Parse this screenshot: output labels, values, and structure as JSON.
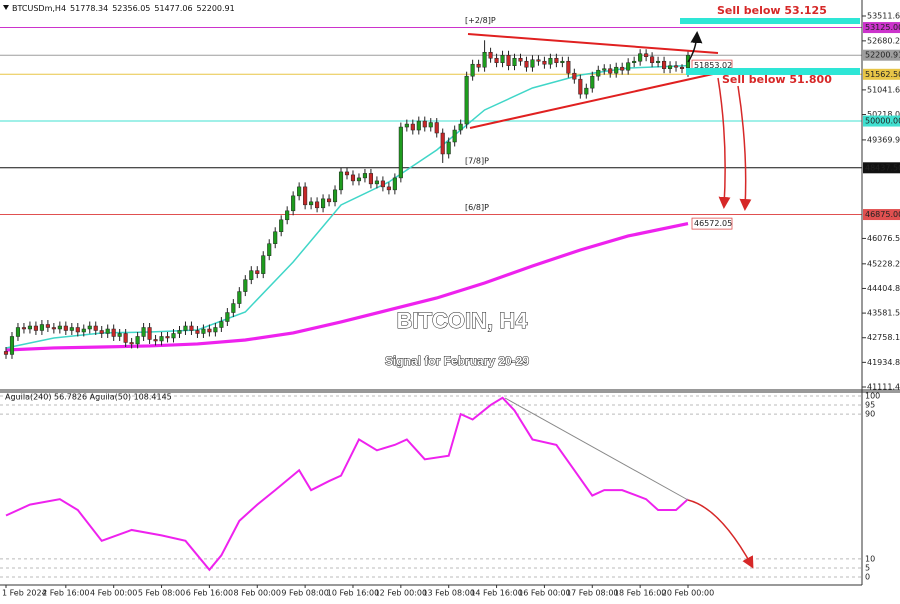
{
  "chart_data": {
    "type": "candlestick",
    "symbol": "BTCUSDm,H4",
    "title": "BITCOIN, H4",
    "subtitle": "Signal for February 20-29",
    "annotations": [
      "Sell below 53.125",
      "Sell below 51.800"
    ],
    "up_color": "#1e9c1e",
    "down_color": "#c62828",
    "categories": [
      "1 Feb 2024",
      null,
      null,
      null,
      null,
      null,
      null,
      null,
      null,
      null,
      "2 Feb 16:00",
      null,
      null,
      null,
      null,
      null,
      null,
      null,
      "4 Feb 00:00",
      null,
      null,
      null,
      null,
      null,
      null,
      null,
      "5 Feb 08:00",
      null,
      null,
      null,
      null,
      null,
      null,
      null,
      "6 Feb 16:00",
      null,
      null,
      null,
      null,
      null,
      null,
      null,
      "8 Feb 00:00",
      null,
      null,
      null,
      null,
      null,
      null,
      null,
      "9 Feb 08:00",
      null,
      null,
      null,
      null,
      null,
      null,
      null,
      "10 Feb 16:00",
      null,
      null,
      null,
      null,
      null,
      null,
      null,
      "12 Feb 00:00",
      null,
      null,
      null,
      null,
      null,
      null,
      null,
      "13 Feb 08:00",
      null,
      null,
      null,
      null,
      null,
      null,
      null,
      "14 Feb 16:00",
      null,
      null,
      null,
      null,
      null,
      null,
      null,
      "16 Feb 00:00",
      null,
      null,
      null,
      null,
      null,
      null,
      null,
      "17 Feb 08:00",
      null,
      null,
      null,
      null,
      null,
      null,
      null,
      "18 Feb 16:00",
      null,
      null,
      null,
      null,
      null,
      null,
      null,
      "20 Feb 00:00"
    ],
    "open": [
      42300,
      42200,
      42800,
      43100,
      43050,
      43150,
      43000,
      43200,
      43100,
      43050,
      43150,
      43000,
      43100,
      42950,
      43050,
      43150,
      43000,
      42900,
      43050,
      42800,
      42900,
      42600,
      42550,
      42800,
      43100,
      42700,
      42650,
      42800,
      42750,
      42900,
      43000,
      43150,
      43000,
      42900,
      43050,
      42950,
      43100,
      43300,
      43600,
      43900,
      44300,
      44700,
      45000,
      44900,
      45500,
      45900,
      46300,
      46700,
      47000,
      47500,
      47800,
      47200,
      47300,
      47100,
      47400,
      47300,
      47700,
      48300,
      48200,
      48000,
      48100,
      48250,
      47900,
      48000,
      47800,
      47700,
      48100,
      49800,
      49900,
      49700,
      50000,
      49800,
      49950,
      49600,
      48900,
      49300,
      49700,
      49900,
      51500,
      51900,
      51800,
      52300,
      52100,
      51950,
      52200,
      51850,
      52100,
      52000,
      51800,
      52050,
      52000,
      51900,
      52100,
      51950,
      52000,
      51600,
      51400,
      50900,
      51100,
      51500,
      51700,
      51750,
      51600,
      51800,
      51700,
      51950,
      52000,
      52250,
      52150,
      51950,
      52000,
      51750,
      51850,
      51800,
      51778.34
    ],
    "high": [
      42450,
      42950,
      43250,
      43250,
      43300,
      43300,
      43350,
      43350,
      43250,
      43300,
      43300,
      43250,
      43250,
      43200,
      43300,
      43300,
      43150,
      43200,
      43200,
      43050,
      43050,
      42750,
      42950,
      43250,
      43250,
      42850,
      42950,
      42950,
      43050,
      43150,
      43300,
      43300,
      43150,
      43200,
      43200,
      43250,
      43450,
      43750,
      44050,
      44450,
      44850,
      45150,
      45150,
      45650,
      46050,
      46450,
      46850,
      47150,
      47650,
      47950,
      47950,
      47450,
      47450,
      47550,
      47550,
      47850,
      48450,
      48450,
      48350,
      48250,
      48400,
      48400,
      48150,
      48150,
      47950,
      48250,
      49950,
      50050,
      50050,
      50150,
      50150,
      50100,
      50100,
      49750,
      49450,
      49850,
      50050,
      51650,
      52050,
      52050,
      52700,
      52450,
      52250,
      52350,
      52350,
      52250,
      52250,
      52150,
      52200,
      52200,
      52150,
      52250,
      52250,
      52150,
      52150,
      51750,
      51550,
      51250,
      51650,
      51850,
      51900,
      51900,
      51950,
      51950,
      52100,
      52150,
      52400,
      52400,
      52300,
      52150,
      52150,
      52000,
      52000,
      51900,
      52356.05
    ],
    "low": [
      42050,
      42050,
      42650,
      42900,
      42900,
      42850,
      42850,
      42950,
      42900,
      42900,
      42850,
      42850,
      42800,
      42800,
      42900,
      42850,
      42750,
      42750,
      42650,
      42650,
      42450,
      42400,
      42400,
      42650,
      42550,
      42500,
      42500,
      42600,
      42600,
      42750,
      42850,
      42850,
      42750,
      42750,
      42800,
      42800,
      42950,
      43150,
      43450,
      43750,
      44150,
      44550,
      44750,
      44750,
      45350,
      45750,
      46150,
      46550,
      46850,
      47350,
      47050,
      47050,
      46950,
      46950,
      47150,
      47150,
      47550,
      48050,
      47850,
      47850,
      47950,
      47750,
      47750,
      47650,
      47550,
      47550,
      47950,
      49650,
      49550,
      49550,
      49650,
      49650,
      49450,
      48600,
      48750,
      49150,
      49550,
      49750,
      51350,
      51650,
      51650,
      51950,
      51800,
      51800,
      51700,
      51700,
      51850,
      51650,
      51650,
      51850,
      51750,
      51750,
      51800,
      51800,
      51450,
      51250,
      50750,
      50750,
      50950,
      51350,
      51550,
      51450,
      51450,
      51550,
      51550,
      51800,
      51850,
      52000,
      51800,
      51800,
      51600,
      51600,
      51650,
      51600,
      51477.06
    ],
    "close": [
      42200,
      42800,
      43100,
      43050,
      43150,
      43000,
      43200,
      43100,
      43050,
      43150,
      43000,
      43100,
      42950,
      43050,
      43150,
      43000,
      42900,
      43050,
      42800,
      42900,
      42600,
      42550,
      42800,
      43100,
      42700,
      42650,
      42800,
      42750,
      42900,
      43000,
      43150,
      43000,
      42900,
      43050,
      42950,
      43100,
      43300,
      43600,
      43900,
      44300,
      44700,
      45000,
      44900,
      45500,
      45900,
      46300,
      46700,
      47000,
      47500,
      47800,
      47200,
      47300,
      47100,
      47400,
      47300,
      47700,
      48300,
      48200,
      48000,
      48100,
      48250,
      47900,
      48000,
      47800,
      47700,
      48100,
      49800,
      49900,
      49700,
      50000,
      49800,
      49950,
      49600,
      48900,
      49300,
      49700,
      49900,
      51500,
      51900,
      51800,
      52300,
      52100,
      51950,
      52200,
      51850,
      52100,
      52000,
      51800,
      52050,
      52000,
      51900,
      52100,
      51950,
      52000,
      51600,
      51400,
      50900,
      51100,
      51500,
      51700,
      51750,
      51600,
      51800,
      51700,
      51950,
      52000,
      52250,
      52150,
      51950,
      52000,
      51750,
      51850,
      51800,
      51750,
      52200.91
    ],
    "moving_averages": [
      {
        "color": "#ee22ee",
        "line_width": 3.2,
        "x": [
          0,
          8,
          16,
          24,
          32,
          40,
          48,
          56,
          64,
          72,
          80,
          88,
          96,
          104,
          114
        ],
        "values": [
          42349,
          42416,
          42449,
          42483,
          42550,
          42683,
          42917,
          43285,
          43686,
          44087,
          44588,
          45156,
          45691,
          46159,
          46572.05
        ]
      },
      {
        "color": "#40d6c8",
        "line_width": 1.5,
        "x": [
          0,
          8,
          16,
          24,
          32,
          40,
          48,
          56,
          64,
          72,
          80,
          88,
          96,
          104,
          114
        ],
        "values": [
          42416,
          42750,
          42917,
          42950,
          43017,
          43619,
          45290,
          47195,
          47964,
          49033,
          50370,
          51105,
          51540,
          51773,
          51853.02
        ]
      }
    ],
    "levels": [
      {
        "value": 53125,
        "label": "53125.00",
        "tag": "[+2/8]P",
        "color": "#cc33cc"
      },
      {
        "value": 52200.91,
        "color": "#9e9e9e"
      },
      {
        "value": 51562.5,
        "label": "51562.50",
        "color": "#e8c547"
      },
      {
        "value": 50000,
        "label": "50000.00",
        "color": "#40e0d0"
      },
      {
        "value": 48437.5,
        "label": "48437.50",
        "tag": "[7/8]P",
        "color": "#111111"
      },
      {
        "value": 46875,
        "label": "46875.00",
        "tag": "[6/8]P",
        "color": "#e05050"
      }
    ],
    "ylim": [
      41011,
      54046
    ],
    "yticks": [
      {
        "value": 53511.6,
        "label": "53511.60"
      },
      {
        "value": 52680.25,
        "label": "52680.25"
      },
      {
        "value": 51041.65,
        "label": "51041.65"
      },
      {
        "value": 50218.06,
        "label": "50218.06"
      },
      {
        "value": 49369.9,
        "label": "49369.90"
      },
      {
        "value": 46076.56,
        "label": "46076.56"
      },
      {
        "value": 45228.2,
        "label": "45228.20"
      },
      {
        "value": 44404.85,
        "label": "44404.85"
      },
      {
        "value": 43581.5,
        "label": "43581.50"
      },
      {
        "value": 42758.15,
        "label": "42758.15"
      },
      {
        "value": 41934.8,
        "label": "41934.80"
      },
      {
        "value": 41111.45,
        "label": "41111.45"
      }
    ],
    "oscillator": {
      "label": "Aguila(240) 56.7826 Aguila(50) 108.4145",
      "color": "#ee22ee",
      "grid": true,
      "ylim": [
        -4.4,
        102.2
      ],
      "yticks": [
        100,
        95,
        90,
        10,
        5,
        0
      ],
      "x": [
        0,
        4,
        9,
        12,
        16,
        21,
        26,
        30,
        34,
        36,
        39,
        42,
        45,
        49,
        51,
        54,
        56,
        59,
        62,
        65,
        67,
        70,
        74,
        76,
        78,
        81,
        83,
        85,
        88,
        92,
        95,
        98,
        100,
        103,
        107,
        109,
        112,
        114
      ],
      "values": [
        34,
        40,
        43,
        37,
        20,
        26,
        23,
        20,
        4,
        12,
        31,
        40,
        48,
        59,
        48,
        53,
        56,
        76,
        70,
        73,
        76,
        65,
        67,
        90,
        87,
        95,
        99,
        92,
        76,
        73,
        59,
        45,
        48,
        48,
        43,
        37,
        37,
        43
      ]
    }
  }
}
